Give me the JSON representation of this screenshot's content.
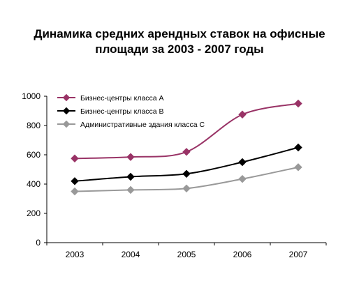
{
  "chart_data": {
    "type": "line",
    "title_line1": "Динамика средних арендных ставок на офисные",
    "title_line2": "площади за 2003 - 2007 годы",
    "categories": [
      "2003",
      "2004",
      "2005",
      "2006",
      "2007"
    ],
    "ylim": [
      0,
      1000
    ],
    "yticks": [
      "0",
      "200",
      "400",
      "600",
      "800",
      "1000"
    ],
    "grid": false,
    "legend_position": "top-left",
    "series": [
      {
        "name": "Бизнес-центры класса А",
        "color": "#993366",
        "values": [
          575,
          585,
          620,
          875,
          950
        ]
      },
      {
        "name": "Бизнес-центры класса В",
        "color": "#000000",
        "values": [
          420,
          450,
          470,
          550,
          650
        ]
      },
      {
        "name": "Административные здания класса С",
        "color": "#999999",
        "values": [
          350,
          360,
          370,
          435,
          515
        ]
      }
    ]
  }
}
